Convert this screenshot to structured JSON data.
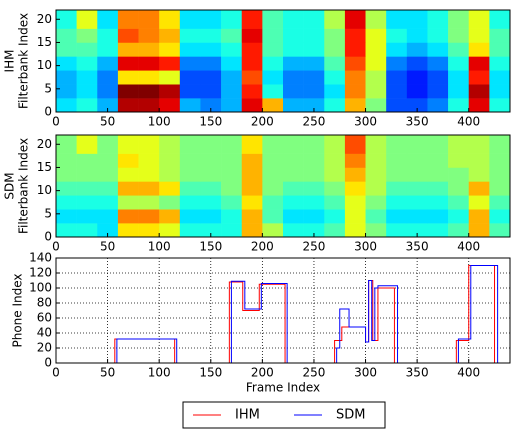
{
  "chart_data": [
    {
      "type": "heatmap",
      "panel_label": "IHM",
      "y_label": "Filterbank Index",
      "colormap": "jet",
      "x_edges": [
        0,
        20,
        40,
        60,
        80,
        100,
        120,
        140,
        160,
        180,
        200,
        220,
        240,
        260,
        280,
        300,
        320,
        340,
        360,
        380,
        400,
        420,
        440
      ],
      "y_edges": [
        0,
        3,
        6,
        9,
        12,
        15,
        18,
        22
      ],
      "z": [
        [
          0.35,
          0.4,
          0.3,
          0.95,
          0.95,
          0.9,
          0.3,
          0.25,
          0.3,
          0.9,
          0.7,
          0.3,
          0.3,
          0.4,
          0.7,
          0.5,
          0.2,
          0.2,
          0.25,
          0.4,
          0.9,
          0.4
        ],
        [
          0.3,
          0.35,
          0.25,
          1.0,
          1.0,
          0.95,
          0.2,
          0.2,
          0.3,
          0.85,
          0.4,
          0.25,
          0.25,
          0.35,
          0.75,
          0.55,
          0.2,
          0.15,
          0.2,
          0.35,
          0.95,
          0.35
        ],
        [
          0.3,
          0.35,
          0.25,
          0.65,
          0.65,
          0.6,
          0.2,
          0.2,
          0.3,
          0.8,
          0.35,
          0.25,
          0.25,
          0.4,
          0.75,
          0.55,
          0.2,
          0.15,
          0.2,
          0.35,
          0.85,
          0.35
        ],
        [
          0.35,
          0.4,
          0.3,
          0.9,
          0.9,
          0.85,
          0.25,
          0.25,
          0.35,
          0.85,
          0.4,
          0.3,
          0.3,
          0.45,
          0.8,
          0.6,
          0.25,
          0.2,
          0.25,
          0.4,
          0.9,
          0.4
        ],
        [
          0.45,
          0.45,
          0.4,
          0.7,
          0.7,
          0.65,
          0.35,
          0.35,
          0.4,
          0.85,
          0.45,
          0.4,
          0.4,
          0.5,
          0.85,
          0.6,
          0.35,
          0.3,
          0.35,
          0.45,
          0.65,
          0.45
        ],
        [
          0.45,
          0.5,
          0.4,
          0.8,
          0.75,
          0.7,
          0.4,
          0.4,
          0.45,
          0.9,
          0.45,
          0.4,
          0.4,
          0.5,
          0.85,
          0.6,
          0.4,
          0.35,
          0.4,
          0.5,
          0.6,
          0.45
        ],
        [
          0.4,
          0.6,
          0.35,
          0.75,
          0.75,
          0.65,
          0.35,
          0.35,
          0.4,
          0.85,
          0.45,
          0.4,
          0.4,
          0.55,
          0.9,
          0.55,
          0.35,
          0.35,
          0.4,
          0.5,
          0.6,
          0.4
        ]
      ],
      "xlim": [
        0,
        440
      ],
      "xticks": [
        0,
        50,
        100,
        150,
        200,
        250,
        300,
        350,
        400
      ],
      "ylim": [
        0,
        22
      ],
      "yticks": [
        0,
        5,
        10,
        15,
        20
      ]
    },
    {
      "type": "heatmap",
      "panel_label": "SDM",
      "y_label": "Filterbank Index",
      "colormap": "jet",
      "x_edges": [
        0,
        20,
        40,
        60,
        80,
        100,
        120,
        140,
        160,
        180,
        200,
        220,
        240,
        260,
        280,
        300,
        320,
        340,
        360,
        380,
        400,
        420,
        440
      ],
      "y_edges": [
        0,
        3,
        6,
        9,
        12,
        15,
        18,
        22
      ],
      "z": [
        [
          0.4,
          0.4,
          0.35,
          0.65,
          0.65,
          0.6,
          0.4,
          0.4,
          0.4,
          0.7,
          0.55,
          0.4,
          0.4,
          0.45,
          0.6,
          0.5,
          0.4,
          0.4,
          0.4,
          0.45,
          0.7,
          0.45
        ],
        [
          0.35,
          0.35,
          0.35,
          0.75,
          0.75,
          0.7,
          0.35,
          0.35,
          0.4,
          0.7,
          0.45,
          0.35,
          0.35,
          0.4,
          0.6,
          0.45,
          0.35,
          0.35,
          0.35,
          0.4,
          0.7,
          0.4
        ],
        [
          0.4,
          0.4,
          0.4,
          0.55,
          0.55,
          0.5,
          0.4,
          0.4,
          0.45,
          0.65,
          0.45,
          0.4,
          0.4,
          0.45,
          0.6,
          0.5,
          0.4,
          0.4,
          0.4,
          0.45,
          0.6,
          0.45
        ],
        [
          0.45,
          0.45,
          0.45,
          0.7,
          0.7,
          0.65,
          0.45,
          0.45,
          0.5,
          0.7,
          0.5,
          0.45,
          0.45,
          0.5,
          0.65,
          0.55,
          0.45,
          0.45,
          0.45,
          0.5,
          0.7,
          0.5
        ],
        [
          0.5,
          0.5,
          0.5,
          0.6,
          0.6,
          0.55,
          0.5,
          0.5,
          0.5,
          0.7,
          0.5,
          0.5,
          0.5,
          0.55,
          0.7,
          0.55,
          0.5,
          0.5,
          0.5,
          0.5,
          0.55,
          0.5
        ],
        [
          0.5,
          0.5,
          0.5,
          0.65,
          0.6,
          0.55,
          0.5,
          0.5,
          0.5,
          0.7,
          0.5,
          0.5,
          0.5,
          0.55,
          0.75,
          0.55,
          0.5,
          0.5,
          0.5,
          0.55,
          0.55,
          0.5
        ],
        [
          0.5,
          0.6,
          0.5,
          0.6,
          0.6,
          0.55,
          0.5,
          0.5,
          0.5,
          0.65,
          0.5,
          0.5,
          0.5,
          0.55,
          0.8,
          0.55,
          0.5,
          0.5,
          0.5,
          0.55,
          0.55,
          0.5
        ]
      ],
      "xlim": [
        0,
        440
      ],
      "xticks": [
        0,
        50,
        100,
        150,
        200,
        250,
        300,
        350,
        400
      ],
      "ylim": [
        0,
        22
      ],
      "yticks": [
        0,
        5,
        10,
        15,
        20
      ]
    },
    {
      "type": "line",
      "x_label": "Frame Index",
      "y_label": "Phone Index",
      "grid": true,
      "legend": "bottom-outside",
      "series": [
        {
          "name": "IHM",
          "color": "#ff0000",
          "x": [
            0,
            57,
            57,
            115,
            115,
            168,
            168,
            181,
            181,
            197,
            197,
            222,
            222,
            270,
            270,
            277,
            277,
            300,
            300,
            303,
            303,
            307,
            307,
            312,
            312,
            328,
            328,
            388,
            388,
            400,
            400,
            425,
            425,
            440
          ],
          "values": [
            0,
            0,
            32,
            32,
            0,
            0,
            108,
            108,
            70,
            70,
            105,
            105,
            0,
            0,
            30,
            30,
            48,
            48,
            28,
            28,
            110,
            110,
            30,
            30,
            100,
            100,
            0,
            0,
            30,
            30,
            130,
            130,
            0,
            0
          ]
        },
        {
          "name": "SDM",
          "color": "#0000ff",
          "x": [
            0,
            59,
            59,
            117,
            117,
            170,
            170,
            183,
            183,
            199,
            199,
            224,
            224,
            272,
            272,
            275,
            275,
            284,
            284,
            300,
            300,
            303,
            303,
            306,
            306,
            309,
            309,
            312,
            312,
            331,
            331,
            390,
            390,
            402,
            402,
            428,
            428,
            440
          ],
          "values": [
            0,
            0,
            32,
            32,
            0,
            0,
            109,
            109,
            72,
            72,
            106,
            106,
            0,
            0,
            20,
            20,
            72,
            72,
            48,
            48,
            28,
            28,
            110,
            110,
            30,
            30,
            100,
            100,
            103,
            103,
            0,
            0,
            32,
            32,
            130,
            130,
            0,
            0
          ]
        }
      ],
      "xlim": [
        0,
        440
      ],
      "xticks": [
        0,
        50,
        100,
        150,
        200,
        250,
        300,
        350,
        400
      ],
      "ylim": [
        0,
        140
      ],
      "yticks": [
        0,
        20,
        40,
        60,
        80,
        100,
        120,
        140
      ]
    }
  ]
}
